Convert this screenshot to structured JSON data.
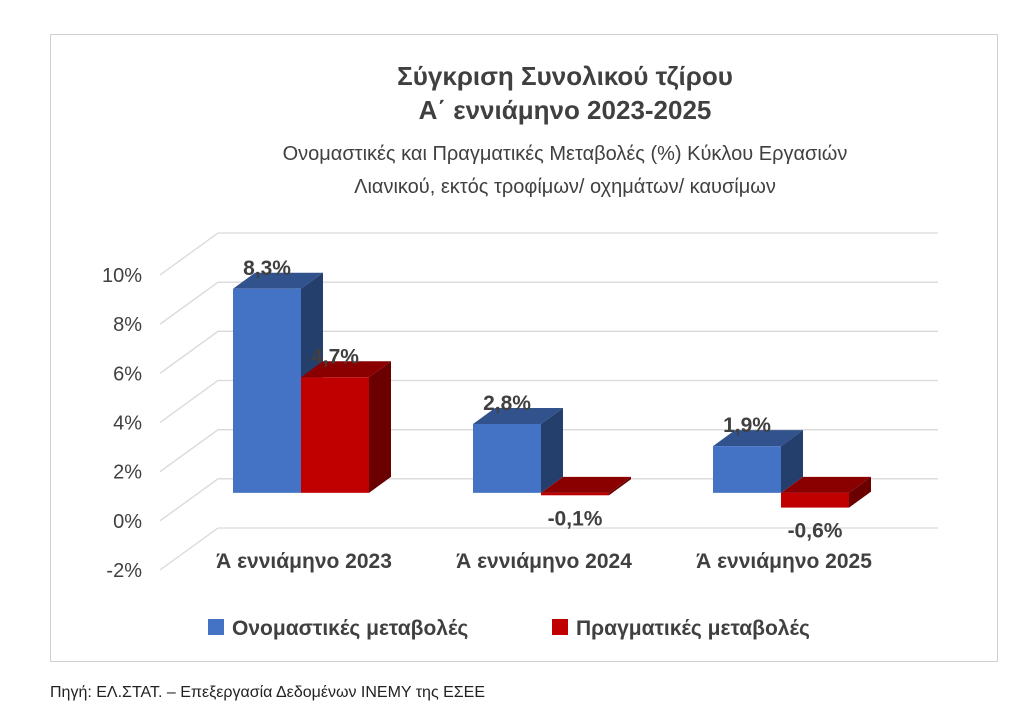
{
  "chart_data": {
    "type": "bar",
    "title": "Σύγκριση Συνολικού τζίρου",
    "title_line2": "Α΄ εννιάμηνο 2023-2025",
    "subtitle": "Ονομαστικές και Πραγματικές Μεταβολές (%) Κύκλου Εργασιών",
    "subtitle_line2": "Λιανικού, εκτός τροφίμων/ οχημάτων/ καυσίμων",
    "categories": [
      "Ά εννιάμηνο 2023",
      "Ά εννιάμηνο 2024",
      "Ά εννιάμηνο 2025"
    ],
    "series": [
      {
        "name": "Ονομαστικές μεταβολές",
        "values": [
          8.3,
          2.8,
          1.9
        ],
        "labels": [
          "8,3%",
          "2,8%",
          "1,9%"
        ],
        "color": "#4472c4"
      },
      {
        "name": "Πραγματικές μεταβολές",
        "values": [
          4.7,
          -0.1,
          -0.6
        ],
        "labels": [
          "4,7%",
          "-0,1%",
          "-0,6%"
        ],
        "color": "#c00000"
      }
    ],
    "y_ticks": [
      -2,
      0,
      2,
      4,
      6,
      8,
      10
    ],
    "y_tick_labels": [
      "-2%",
      "0%",
      "2%",
      "4%",
      "6%",
      "8%",
      "10%"
    ],
    "ylim": [
      -2,
      10
    ],
    "grid": true,
    "legend_position": "bottom",
    "style": "3d-clustered-column"
  },
  "source_note": "Πηγή: ΕΛ.ΣΤΑΤ. – Επεξεργασία Δεδομένων ΙΝΕΜΥ της ΕΣΕΕ"
}
